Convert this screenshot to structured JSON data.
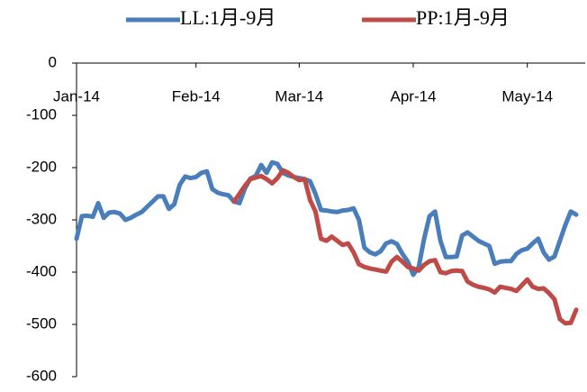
{
  "chart_data": {
    "type": "line",
    "categories": [
      "Jan-14",
      null,
      null,
      null,
      null,
      null,
      null,
      null,
      null,
      null,
      null,
      null,
      null,
      null,
      null,
      null,
      null,
      null,
      null,
      null,
      null,
      null,
      "Feb-14",
      null,
      null,
      null,
      null,
      null,
      null,
      null,
      null,
      null,
      null,
      null,
      null,
      null,
      null,
      null,
      null,
      null,
      null,
      "Mar-14",
      null,
      null,
      null,
      null,
      null,
      null,
      null,
      null,
      null,
      null,
      null,
      null,
      null,
      null,
      null,
      null,
      null,
      null,
      null,
      null,
      "Apr-14",
      null,
      null,
      null,
      null,
      null,
      null,
      null,
      null,
      null,
      null,
      null,
      null,
      null,
      null,
      null,
      null,
      null,
      null,
      null,
      null,
      "May-14",
      null,
      null,
      null,
      null,
      null,
      null,
      null,
      null,
      null
    ],
    "series": [
      {
        "name": "LL:1月-9月",
        "color": "#4a7ebb",
        "values": [
          -336,
          -293,
          -292,
          -294,
          -268,
          -296,
          -286,
          -285,
          -288,
          -300,
          -296,
          -290,
          -285,
          -275,
          -265,
          -255,
          -255,
          -279,
          -270,
          -233,
          -217,
          -220,
          -218,
          -210,
          -207,
          -241,
          -248,
          -251,
          -253,
          -265,
          -268,
          -240,
          -221,
          -216,
          -195,
          -210,
          -190,
          -193,
          -210,
          -215,
          -218,
          -220,
          -222,
          -226,
          -250,
          -281,
          -282,
          -284,
          -285,
          -282,
          -281,
          -278,
          -300,
          -353,
          -362,
          -366,
          -360,
          -345,
          -341,
          -346,
          -365,
          -380,
          -405,
          -390,
          -336,
          -293,
          -284,
          -340,
          -371,
          -371,
          -370,
          -330,
          -324,
          -332,
          -340,
          -345,
          -350,
          -384,
          -380,
          -379,
          -379,
          -365,
          -358,
          -355,
          -345,
          -336,
          -362,
          -376,
          -370,
          -340,
          -310,
          -284,
          -290
        ]
      },
      {
        "name": "PP:1月-9月",
        "color": "#be4b48",
        "values": [
          null,
          null,
          null,
          null,
          null,
          null,
          null,
          null,
          null,
          null,
          null,
          null,
          null,
          null,
          null,
          null,
          null,
          null,
          null,
          null,
          null,
          null,
          null,
          null,
          null,
          null,
          null,
          null,
          null,
          -265,
          -250,
          -235,
          -222,
          -219,
          -216,
          -222,
          -230,
          -220,
          -205,
          -210,
          -218,
          -224,
          -222,
          -262,
          -284,
          -336,
          -340,
          -332,
          -340,
          -348,
          -345,
          -362,
          -385,
          -390,
          -393,
          -395,
          -397,
          -399,
          -380,
          -371,
          -380,
          -390,
          -393,
          -397,
          -386,
          -379,
          -377,
          -400,
          -402,
          -398,
          -397,
          -398,
          -418,
          -424,
          -428,
          -430,
          -433,
          -439,
          -428,
          -430,
          -432,
          -436,
          -425,
          -414,
          -428,
          -432,
          -431,
          -440,
          -452,
          -490,
          -498,
          -497,
          -472
        ]
      }
    ],
    "ylim": [
      0,
      -600
    ],
    "yticks": [
      0,
      -100,
      -200,
      -300,
      -400,
      -500,
      -600
    ],
    "legend": "top"
  }
}
